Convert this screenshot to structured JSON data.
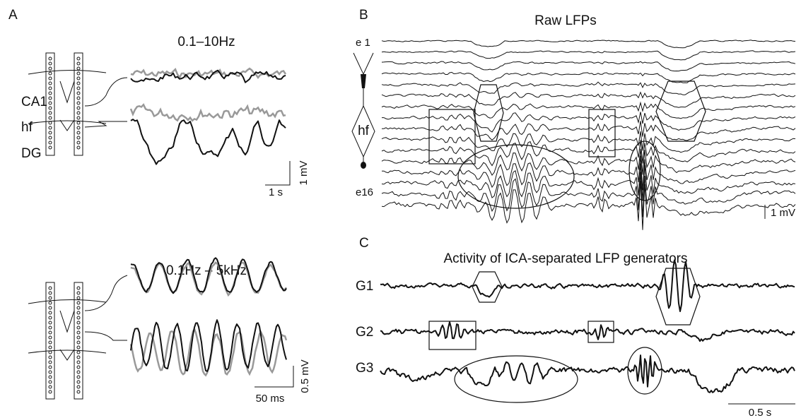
{
  "panel_a": {
    "label": "A",
    "top_title": "0.1–10Hz",
    "regions": [
      "CA1",
      "hf",
      "DG"
    ],
    "top_scale_time": "1 s",
    "top_scale_volt": "1 mV",
    "bottom_title": "0.1Hz – 5kHz",
    "bottom_scale_volt": "0.5 mV",
    "bottom_scale_time": "50 ms"
  },
  "panel_b": {
    "label": "B",
    "title": "Raw LFPs",
    "first_electrode": "e 1",
    "layer": "hf",
    "last_electrode": "e16",
    "scale_volt": "1 mV"
  },
  "panel_c": {
    "label": "C",
    "title": "Activity of ICA-separated LFP generators",
    "generators": [
      "G1",
      "G2",
      "G3"
    ],
    "scale_time": "0.5 s"
  }
}
